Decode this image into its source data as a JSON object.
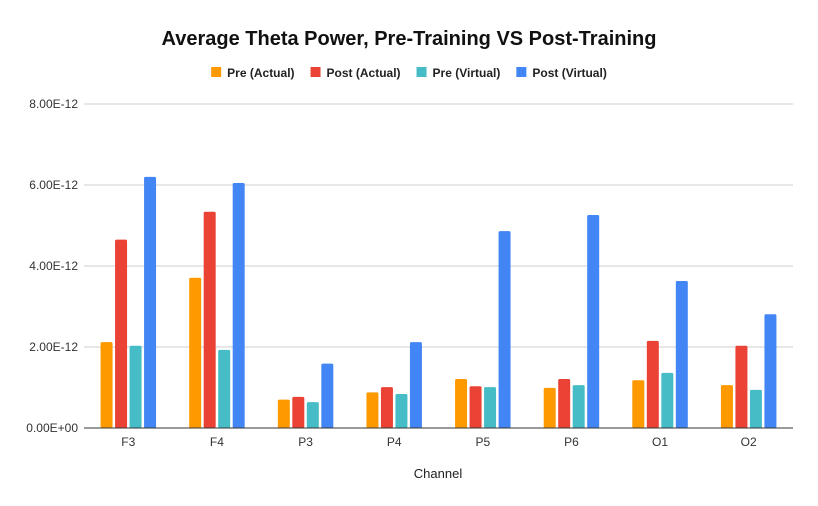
{
  "chart_data": {
    "type": "bar",
    "title": "Average Theta Power, Pre-Training VS Post-Training",
    "xlabel": "Channel",
    "ylabel": "",
    "ylim": [
      0,
      8e-12
    ],
    "yticks": [
      0,
      2e-12,
      4e-12,
      6e-12,
      8e-12
    ],
    "ytick_labels": [
      "0.00E+00",
      "2.00E-12",
      "4.00E-12",
      "6.00E-12",
      "8.00E-12"
    ],
    "grid": true,
    "legend_position": "top",
    "categories": [
      "F3",
      "F4",
      "P3",
      "P4",
      "P5",
      "P6",
      "O1",
      "O2"
    ],
    "series": [
      {
        "name": "Pre (Actual)",
        "color": "#FF9900",
        "values": [
          2.12e-12,
          3.71e-12,
          7e-13,
          8.8e-13,
          1.21e-12,
          9.9e-13,
          1.18e-12,
          1.06e-12
        ]
      },
      {
        "name": "Post (Actual)",
        "color": "#EA4335",
        "values": [
          4.65e-12,
          5.34e-12,
          7.7e-13,
          1.01e-12,
          1.03e-12,
          1.21e-12,
          2.15e-12,
          2.03e-12
        ]
      },
      {
        "name": "Pre (Virtual)",
        "color": "#46BDC6",
        "values": [
          2.03e-12,
          1.93e-12,
          6.4e-13,
          8.4e-13,
          1.01e-12,
          1.06e-12,
          1.36e-12,
          9.4e-13
        ]
      },
      {
        "name": "Post (Virtual)",
        "color": "#4285F4",
        "values": [
          6.2e-12,
          6.05e-12,
          1.59e-12,
          2.12e-12,
          4.86e-12,
          5.26e-12,
          3.63e-12,
          2.81e-12
        ]
      }
    ]
  }
}
